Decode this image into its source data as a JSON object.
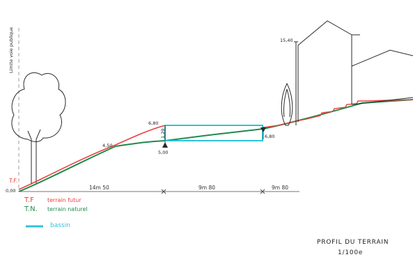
{
  "annotations": {
    "side_label": "Limite voie publique",
    "tf_mark": "T.F.",
    "elev_start": "0,00",
    "elev_mid": "4,50",
    "elev_basin_top": "6,80",
    "elev_basin_bottom": "5,00",
    "elev_basin_right": "6,80",
    "elev_building": "15,40",
    "basin_depth": "1,20"
  },
  "dimensions": {
    "seg1": "14m 50",
    "seg2": "9m 80",
    "seg3": "9m 80"
  },
  "legend": {
    "tf_abbr": "T.F",
    "tf_text": "terrain futur",
    "tn_abbr": "T.N.",
    "tn_text": "terrain naturel",
    "basin_text": "bassin"
  },
  "title": {
    "line1": "PROFIL DU TERRAIN",
    "line2": "1/100e"
  },
  "colors": {
    "terrain_futur": "#e8403a",
    "terrain_naturel": "#1f8a4c",
    "bassin": "#2cc4d8",
    "ink": "#2a2a2a"
  }
}
